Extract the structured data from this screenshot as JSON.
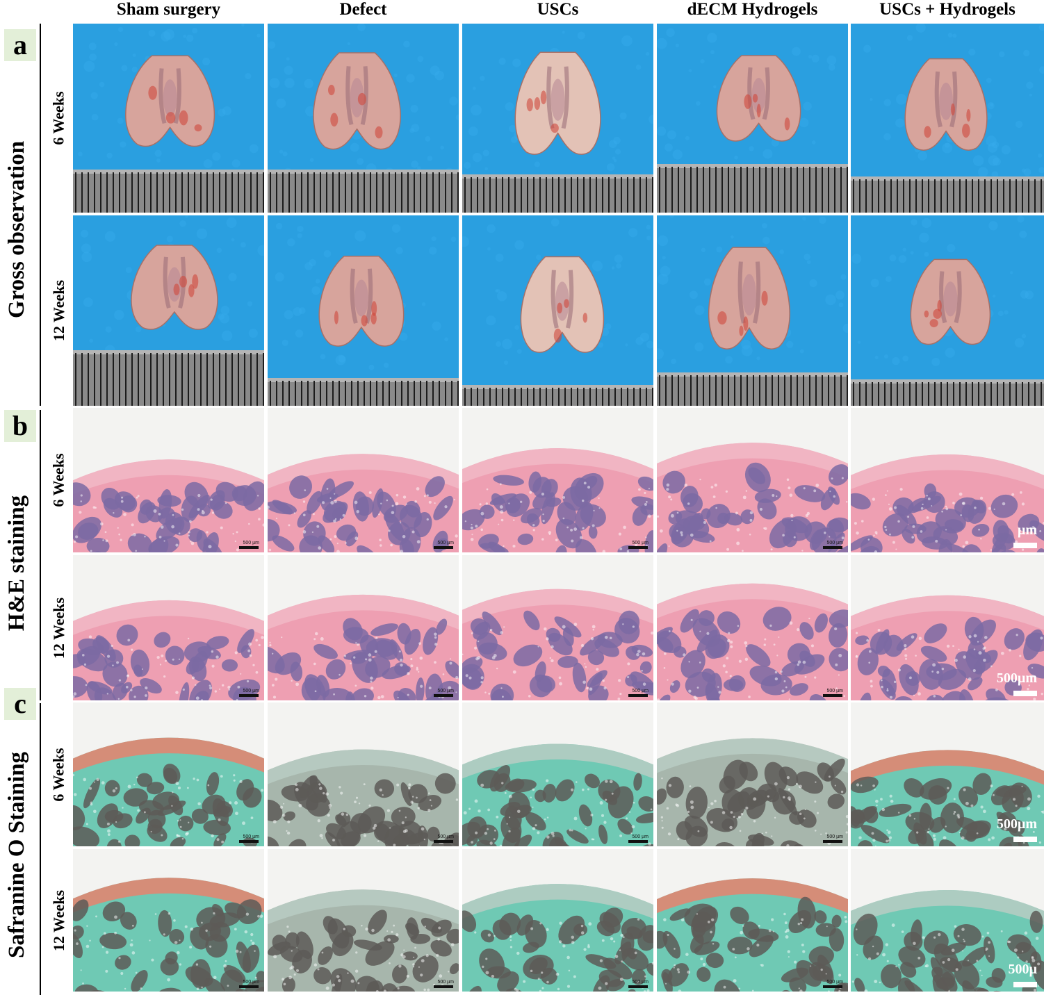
{
  "columns": [
    "Sham surgery",
    "Defect",
    "USCs",
    "dECM Hydrogels",
    "USCs + Hydrogels"
  ],
  "panels": [
    {
      "letter": "a",
      "title": "Gross observation",
      "rows": [
        "6 Weeks",
        "12 Weeks"
      ]
    },
    {
      "letter": "b",
      "title": "H&E staining",
      "rows": [
        "6 Weeks",
        "12 Weeks"
      ]
    },
    {
      "letter": "c",
      "title": "Safranine O Staining",
      "rows": [
        "6 Weeks",
        "12 Weeks"
      ]
    }
  ],
  "scale_bar_small": "500 µm",
  "scale_labels": {
    "he_6w": "µm",
    "he_12w": "500µm",
    "saf_6w": "500µm",
    "saf_12w": "500µ"
  },
  "colors": {
    "gross_background": "#2a9fe0",
    "tissue": "#d7a49c",
    "he_stroma": "#ee9fb2",
    "he_marrow": "#7b6aa3",
    "saf_green": "#6fc9b4",
    "saf_red": "#e8826d",
    "saf_marrow": "#5d5a57"
  }
}
